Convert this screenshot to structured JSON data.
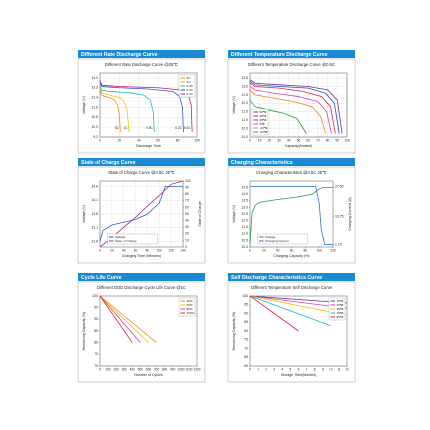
{
  "chart_data": [
    {
      "type": "line",
      "header": "Different Rate Discharge Curve",
      "title": "Different Rate Discharge Curve @25℃",
      "ylabel": "Voltage (V)",
      "xlabel": "Discharge Time",
      "xlim": [
        0,
        100
      ],
      "xticks": [
        0,
        20,
        40,
        60,
        80,
        100
      ],
      "ylim": [
        9.2,
        14.4
      ],
      "yticks": [
        9.2,
        {
          "value": 10,
          "label": "10.0"
        },
        10.8,
        11.6,
        12.4,
        13.2,
        {
          "value": 14,
          "label": "14.0"
        }
      ],
      "grid": true,
      "legend": "upper right",
      "end_labels": true,
      "series": [
        {
          "name": "3C",
          "color": "#f08a24",
          "x": [
            0,
            2,
            5,
            10,
            15,
            18,
            20,
            21
          ],
          "values": [
            13.0,
            12.6,
            12.5,
            12.4,
            12.2,
            11.8,
            11.0,
            9.6
          ]
        },
        {
          "name": "1C",
          "color": "#f2c500",
          "x": [
            0,
            2,
            5,
            10,
            20,
            25,
            28,
            30
          ],
          "values": [
            13.2,
            12.8,
            12.7,
            12.6,
            12.4,
            12.1,
            11.3,
            9.6
          ]
        },
        {
          "name": "0.5C",
          "color": "#19b5c9",
          "x": [
            0,
            2,
            10,
            30,
            45,
            52,
            55,
            56
          ],
          "values": [
            13.4,
            13.0,
            12.9,
            12.8,
            12.6,
            12.2,
            11.2,
            9.6
          ]
        },
        {
          "name": "0.2C",
          "color": "#3b4fd0",
          "x": [
            0,
            2,
            20,
            50,
            75,
            82,
            85,
            86
          ],
          "values": [
            13.6,
            13.3,
            13.2,
            13.1,
            12.9,
            12.5,
            11.6,
            9.6
          ]
        },
        {
          "name": "0.1C",
          "color": "#c0207a",
          "x": [
            0,
            2,
            20,
            60,
            85,
            91,
            94,
            95
          ],
          "values": [
            13.8,
            13.4,
            13.3,
            13.2,
            13.0,
            12.6,
            11.8,
            9.6
          ]
        }
      ]
    },
    {
      "type": "line",
      "header": "Different Temperature Discharge Curve",
      "title": "Different Temperature Discharge Curve @0.5C",
      "ylabel": "Voltage (V)",
      "xlabel": "Capacity(%rated)",
      "xlim": [
        0,
        100
      ],
      "xticks": [
        0,
        10,
        20,
        30,
        40,
        50,
        60,
        70,
        80,
        90,
        100
      ],
      "ylim": [
        10,
        13.8
      ],
      "yticks": [
        {
          "value": 10,
          "label": "10.0"
        },
        10.5,
        {
          "value": 11,
          "label": "11.0"
        },
        11.5,
        {
          "value": 12,
          "label": "12.0"
        },
        12.5,
        {
          "value": 13,
          "label": "13.0"
        },
        13.5
      ],
      "grid": true,
      "legend": "lower left",
      "series": [
        {
          "name": "60℃",
          "color": "#7030a0",
          "x": [
            0,
            5,
            30,
            60,
            80,
            90,
            95
          ],
          "values": [
            13.4,
            13.2,
            13.1,
            13.0,
            12.8,
            12.2,
            10.2
          ]
        },
        {
          "name": "45℃",
          "color": "#1f4fd6",
          "x": [
            0,
            5,
            30,
            60,
            78,
            87,
            92
          ],
          "values": [
            13.3,
            13.1,
            13.0,
            12.9,
            12.6,
            12.0,
            10.2
          ]
        },
        {
          "name": "25℃",
          "color": "#e0203a",
          "x": [
            0,
            5,
            30,
            55,
            74,
            83,
            88
          ],
          "values": [
            13.2,
            13.0,
            12.9,
            12.7,
            12.4,
            11.8,
            10.2
          ]
        },
        {
          "name": "0℃",
          "color": "#e040c0",
          "x": [
            0,
            5,
            25,
            50,
            70,
            79,
            84
          ],
          "values": [
            13.0,
            12.8,
            12.6,
            12.4,
            12.1,
            11.5,
            10.2
          ]
        },
        {
          "name": "-10℃",
          "color": "#f08020",
          "x": [
            0,
            5,
            25,
            45,
            64,
            73,
            78
          ],
          "values": [
            12.8,
            12.5,
            12.3,
            12.1,
            11.8,
            11.2,
            10.2
          ]
        },
        {
          "name": "-20℃",
          "color": "#20a040",
          "x": [
            0,
            5,
            20,
            35,
            48,
            54,
            58
          ],
          "values": [
            12.2,
            11.8,
            11.6,
            11.4,
            11.1,
            10.6,
            10.2
          ]
        }
      ]
    },
    {
      "type": "line",
      "header": "State of Charge Curve",
      "title": "State of Charge Curve @0.5C 25℃",
      "ylabel": "Voltage (V)",
      "y2label": "State of Charge",
      "xlabel": "Charging Time (Minutes)",
      "xlim": [
        0,
        140
      ],
      "xticks": [
        0,
        20,
        40,
        60,
        80,
        100,
        120,
        140
      ],
      "ylim": [
        12.4,
        14.8
      ],
      "yticks": [
        12.6,
        13.1,
        13.6,
        14.1,
        14.6
      ],
      "y2lim": [
        0,
        100
      ],
      "y2ticks": [
        0,
        10,
        20,
        30,
        40,
        50,
        60,
        70,
        80,
        90,
        100
      ],
      "grid": true,
      "legend": "lower center",
      "series": [
        {
          "name": "Voltage",
          "color": "#2f5fd0",
          "x": [
            0,
            5,
            20,
            40,
            60,
            80,
            100,
            110,
            140
          ],
          "values": [
            12.6,
            13.0,
            13.2,
            13.3,
            13.4,
            13.6,
            14.0,
            14.6,
            14.6
          ]
        },
        {
          "name": "State of Charge",
          "color": "#a0307a",
          "axis": "y2",
          "x": [
            0,
            20,
            40,
            60,
            80,
            100,
            120,
            140
          ],
          "values": [
            0,
            14,
            30,
            45,
            62,
            78,
            95,
            100
          ]
        }
      ]
    },
    {
      "type": "line",
      "header": "Charging Characteristics",
      "title": "Charging Characteristics @0.5C 25℃",
      "ylabel": "Voltage (V)",
      "y2label": "Charging Current (A)",
      "xlabel": "Charging Capacity (%)",
      "xlim": [
        0,
        120
      ],
      "xticks": [
        0,
        20,
        40,
        60,
        80,
        100,
        120
      ],
      "ylim": [
        10,
        15
      ],
      "yticks": [
        {
          "value": 10,
          "label": "10.0"
        },
        10.5,
        {
          "value": 11,
          "label": "11.0"
        },
        11.5,
        {
          "value": 12,
          "label": "12.0"
        },
        12.5,
        {
          "value": 13,
          "label": "13.0"
        },
        13.5,
        {
          "value": 14,
          "label": "14.0"
        },
        14.5
      ],
      "y2lim": [
        0,
        30
      ],
      "y2ticks": [
        {
          "value": 1.1,
          "label": "1.10"
        },
        {
          "value": 13.75,
          "label": "13.75"
        },
        {
          "value": 27.5,
          "label": "27.50"
        }
      ],
      "grid": false,
      "legend": "lower center",
      "series": [
        {
          "name": "Voltage",
          "color": "#20a050",
          "x": [
            0,
            3,
            8,
            15,
            40,
            70,
            90,
            100,
            105,
            120
          ],
          "values": [
            10.2,
            12.6,
            13.2,
            13.4,
            13.6,
            13.8,
            14.0,
            14.4,
            14.5,
            14.5
          ]
        },
        {
          "name": "Charging Current",
          "color": "#2f6fd0",
          "axis": "y2",
          "x": [
            0,
            95,
            100,
            103,
            108,
            120
          ],
          "values": [
            27.5,
            27.5,
            20,
            8,
            1.1,
            1.1
          ]
        }
      ]
    },
    {
      "type": "line",
      "header": "Cycle Life Curve",
      "title": "Different DOD Discharge Cycle Life Curve @1C",
      "ylabel": "Remaining Capacity (%)",
      "xlabel": "Number of Cycles",
      "xlim": [
        0,
        1200
      ],
      "xticks": [
        0,
        100,
        200,
        300,
        400,
        500,
        600,
        700,
        800,
        900,
        1000,
        1100,
        1200
      ],
      "ylim": [
        70,
        100
      ],
      "yticks": [
        70,
        75,
        80,
        85,
        90,
        95,
        100
      ],
      "grid": false,
      "legend": "upper right",
      "series": [
        {
          "name": "30%",
          "color": "#f08a24",
          "x": [
            0,
            350,
            700
          ],
          "values": [
            100,
            90,
            80
          ]
        },
        {
          "name": "50%",
          "color": "#f2c500",
          "x": [
            0,
            300,
            600
          ],
          "values": [
            100,
            90,
            80
          ]
        },
        {
          "name": "80%",
          "color": "#d040a0",
          "x": [
            0,
            250,
            500
          ],
          "values": [
            100,
            90,
            80
          ]
        },
        {
          "name": "100%",
          "color": "#e0203a",
          "x": [
            0,
            200,
            400
          ],
          "values": [
            100,
            90,
            80
          ]
        }
      ]
    },
    {
      "type": "line",
      "header": "Self Discharge Characteristics Curve",
      "title": "Different Temperature Self Discharge Curve",
      "ylabel": "Remaining Capacity (%)",
      "xlabel": "Storage Time(Months)",
      "xlim": [
        0,
        12
      ],
      "xticks": [
        0,
        1,
        2,
        3,
        4,
        5,
        6,
        7,
        8,
        9,
        10,
        11,
        12
      ],
      "ylim": [
        60,
        100
      ],
      "yticks": [
        60,
        65,
        70,
        75,
        80,
        85,
        90,
        95,
        100
      ],
      "grid": false,
      "legend": "upper right",
      "series": [
        {
          "name": "15℃",
          "color": "#7030a0",
          "x": [
            0,
            12
          ],
          "values": [
            100,
            96
          ]
        },
        {
          "name": "25℃",
          "color": "#d040a0",
          "x": [
            0,
            12
          ],
          "values": [
            100,
            93
          ]
        },
        {
          "name": "35℃",
          "color": "#f2c500",
          "x": [
            0,
            12
          ],
          "values": [
            100,
            89
          ]
        },
        {
          "name": "45℃",
          "color": "#19b5c9",
          "x": [
            0,
            10
          ],
          "values": [
            100,
            83
          ]
        },
        {
          "name": "55℃",
          "color": "#e0203a",
          "x": [
            0,
            6
          ],
          "values": [
            100,
            80
          ]
        }
      ]
    }
  ]
}
